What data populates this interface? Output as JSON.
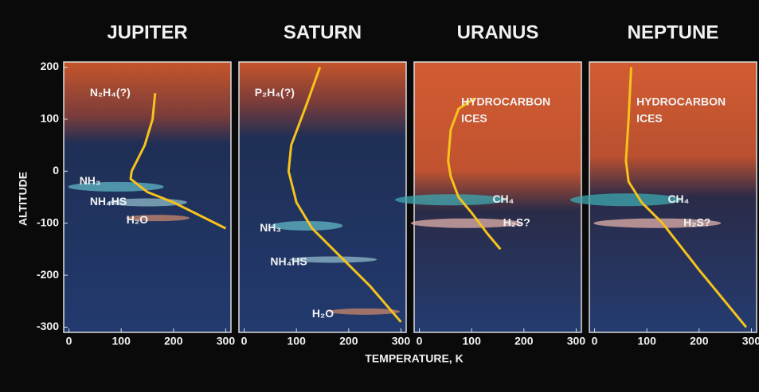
{
  "ylabel": "ALTITUDE",
  "xlabel": "TEMPERATURE, K",
  "chart_data": [
    {
      "type": "line",
      "title": "JUPITER",
      "xlim": [
        -10,
        310
      ],
      "ylim": [
        -310,
        210
      ],
      "xticks": [
        0,
        100,
        200,
        300
      ],
      "yticks": [
        200,
        100,
        0,
        -100,
        -200,
        -300
      ],
      "series": [
        {
          "color": "#f6c21c",
          "x": [
            165,
            160,
            145,
            120,
            118,
            150,
            200,
            250,
            300
          ],
          "values": [
            150,
            100,
            50,
            0,
            -15,
            -40,
            -60,
            -85,
            -110
          ]
        }
      ],
      "annotations": [
        "N₂H₄(?)",
        "NH₃",
        "NH₄HS",
        "H₂O"
      ]
    },
    {
      "type": "line",
      "title": "SATURN",
      "xlim": [
        -10,
        310
      ],
      "ylim": [
        -310,
        210
      ],
      "xticks": [
        0,
        100,
        200,
        300
      ],
      "series": [
        {
          "color": "#f6c21c",
          "x": [
            145,
            120,
            90,
            85,
            100,
            130,
            180,
            240,
            300
          ],
          "values": [
            200,
            130,
            50,
            0,
            -60,
            -110,
            -160,
            -220,
            -290
          ]
        }
      ],
      "annotations": [
        "P₂H₄(?)",
        "NH₃",
        "NH₄HS",
        "H₂O"
      ]
    },
    {
      "type": "line",
      "title": "URANUS",
      "xlim": [
        -10,
        310
      ],
      "ylim": [
        -310,
        210
      ],
      "xticks": [
        0,
        100,
        200,
        300
      ],
      "series": [
        {
          "color": "#f6c21c",
          "x": [
            105,
            75,
            60,
            55,
            60,
            75,
            100,
            130,
            155
          ],
          "values": [
            140,
            120,
            80,
            20,
            -10,
            -50,
            -80,
            -120,
            -150
          ]
        }
      ],
      "annotations": [
        "HYDROCARBON",
        "ICES",
        "CH₄",
        "H₂S?"
      ]
    },
    {
      "type": "line",
      "title": "NEPTUNE",
      "xlim": [
        -10,
        310
      ],
      "ylim": [
        -310,
        210
      ],
      "xticks": [
        0,
        100,
        200,
        300
      ],
      "series": [
        {
          "color": "#f6c21c",
          "x": [
            70,
            65,
            60,
            65,
            90,
            130,
            200,
            290
          ],
          "values": [
            200,
            100,
            20,
            -20,
            -60,
            -100,
            -190,
            -300
          ]
        }
      ],
      "annotations": [
        "HYDROCARBON",
        "ICES",
        "CH₄",
        "H₂S?"
      ]
    }
  ]
}
